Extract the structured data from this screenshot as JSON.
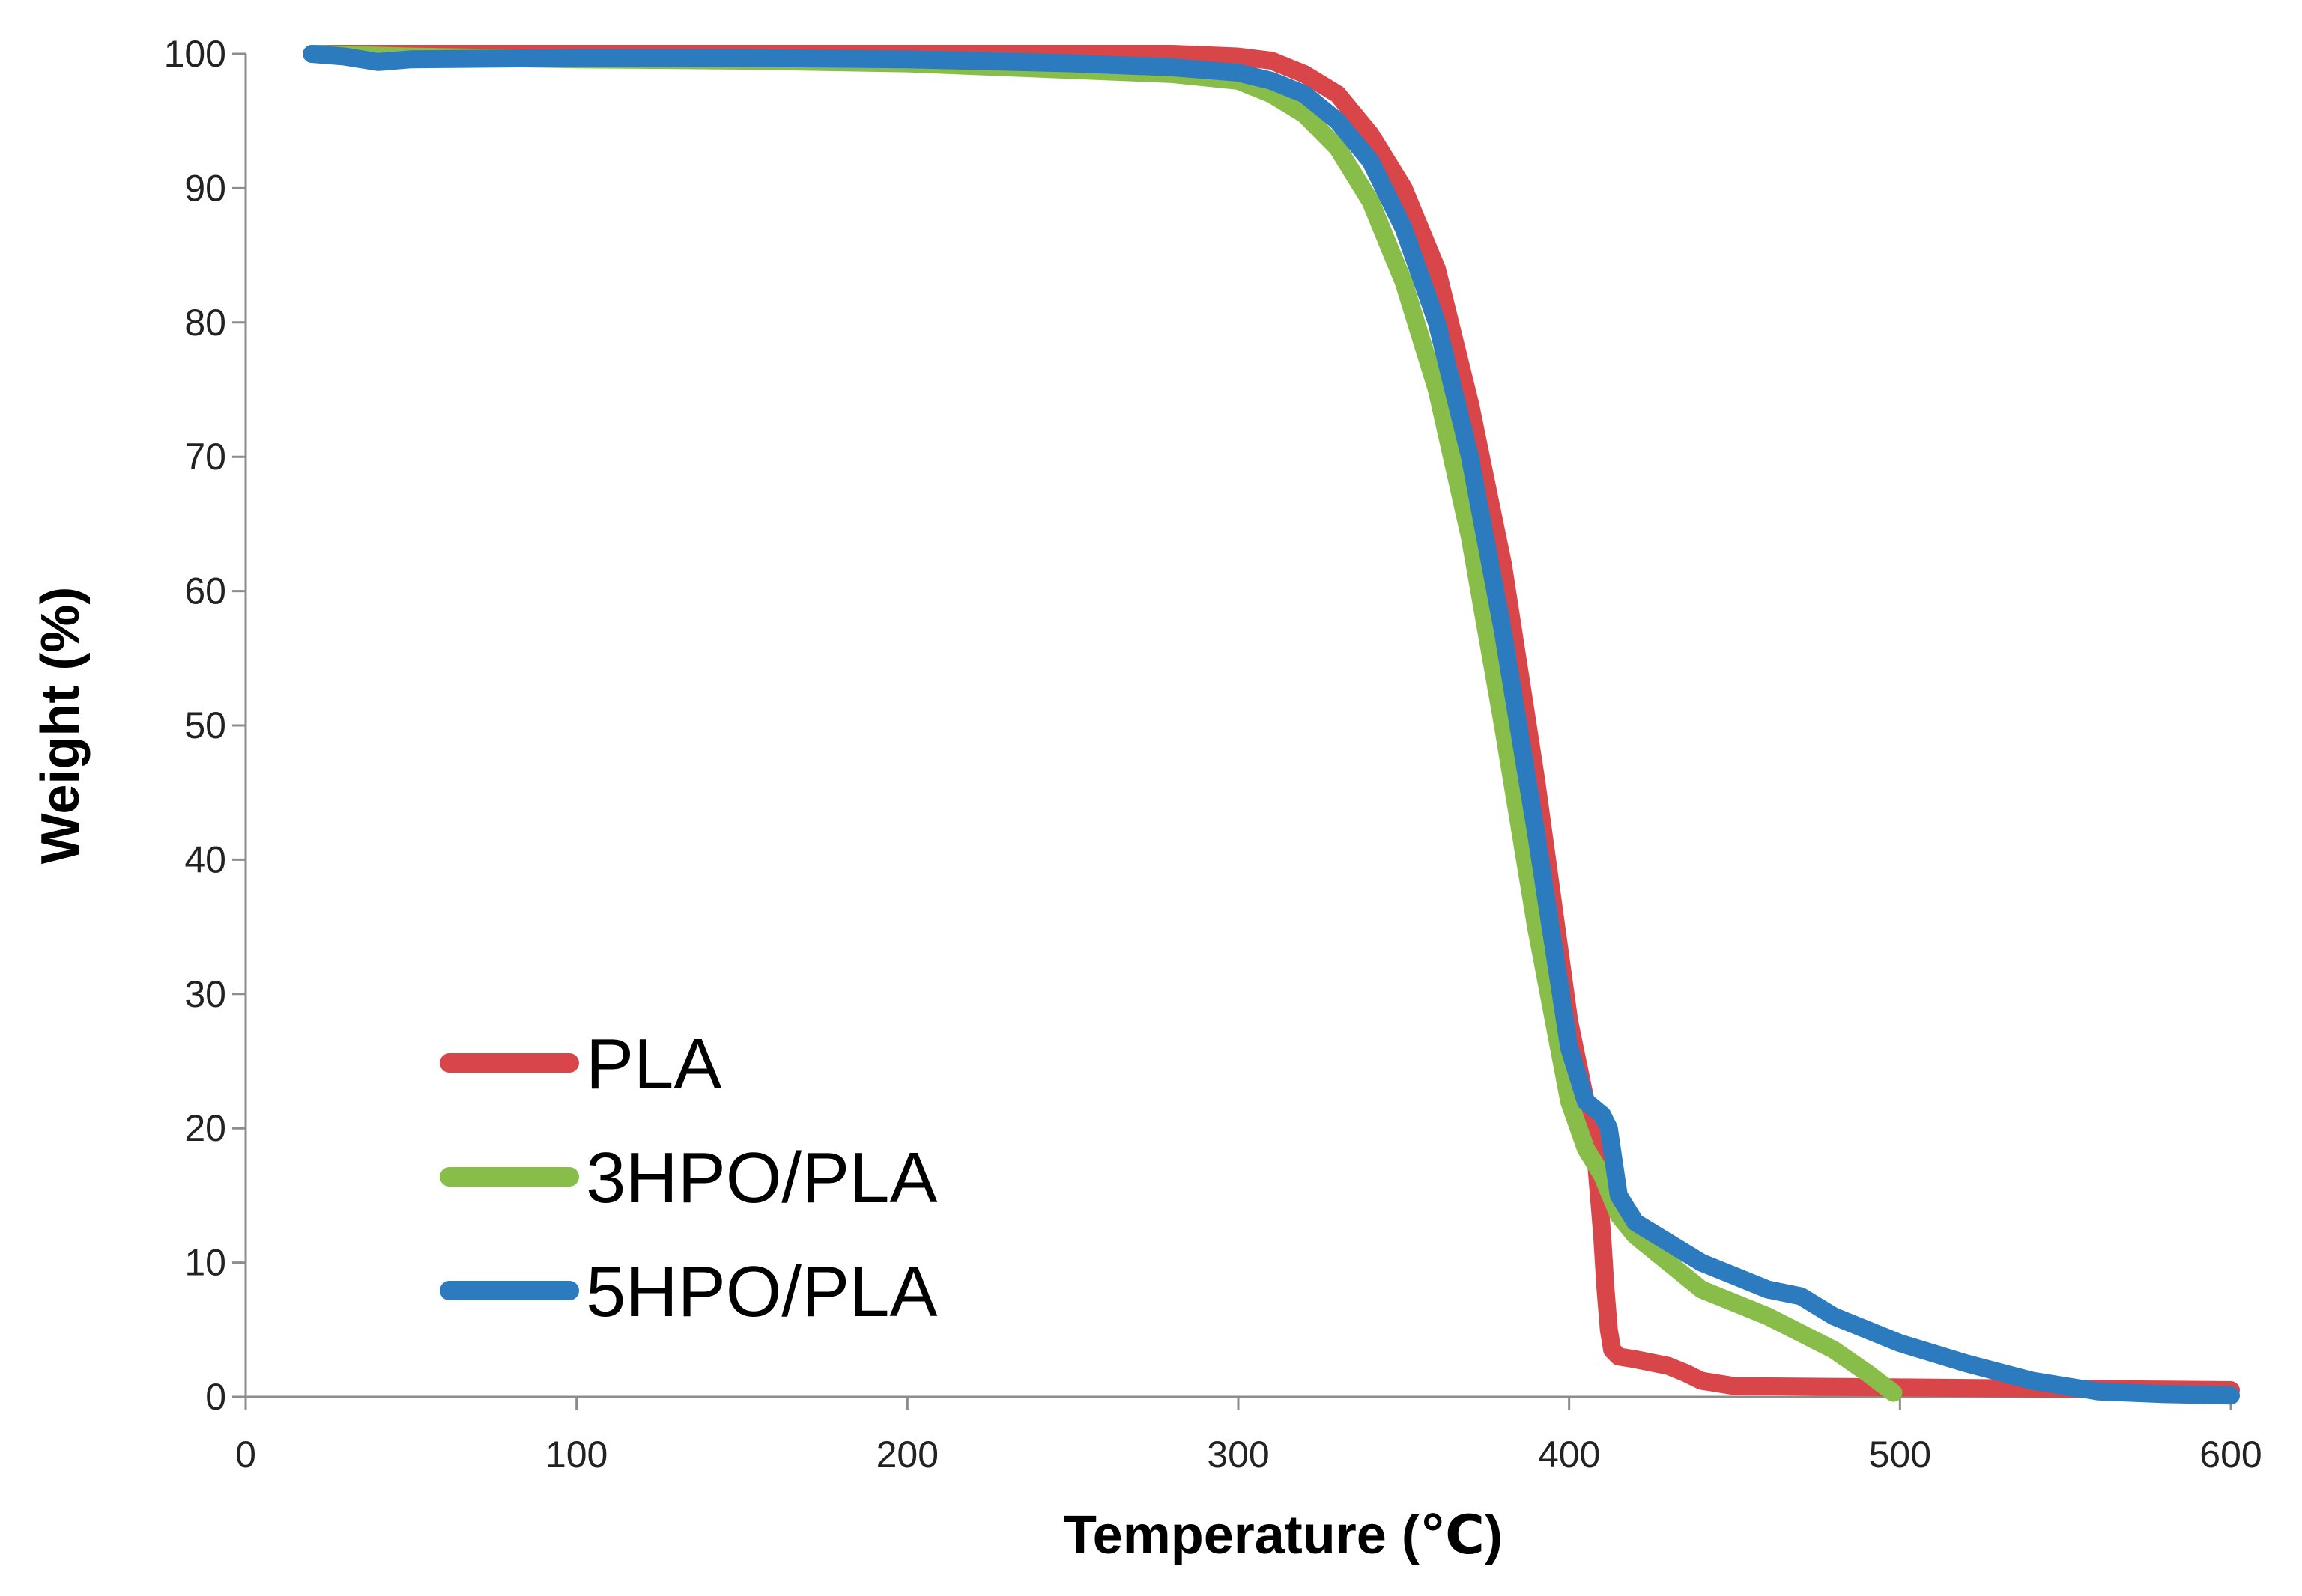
{
  "chart_data": {
    "type": "line",
    "title": "",
    "xlabel": "Temperature (℃)",
    "ylabel": "Weight (%)",
    "xlim": [
      0,
      600
    ],
    "ylim": [
      0,
      100
    ],
    "xticks": [
      0,
      100,
      200,
      300,
      400,
      500,
      600
    ],
    "yticks": [
      0,
      10,
      20,
      30,
      40,
      50,
      60,
      70,
      80,
      90,
      100
    ],
    "grid": false,
    "legend_position": "bottom-left",
    "series": [
      {
        "name": "PLA",
        "color": "#d9464a",
        "x": [
          20,
          50,
          100,
          200,
          280,
          300,
          310,
          320,
          330,
          340,
          350,
          360,
          370,
          380,
          390,
          400,
          405,
          408,
          410,
          411,
          412,
          413,
          415,
          420,
          430,
          435,
          440,
          450,
          500,
          550,
          600
        ],
        "y": [
          100,
          100,
          100,
          100,
          100,
          99.8,
          99.5,
          98.5,
          97,
          94,
          90,
          84,
          74,
          62,
          46,
          28,
          22,
          18,
          12,
          8,
          5,
          3.5,
          3,
          2.8,
          2.3,
          1.8,
          1.2,
          0.8,
          0.7,
          0.6,
          0.5
        ]
      },
      {
        "name": "3HPO/PLA",
        "color": "#88bd4a",
        "x": [
          20,
          50,
          100,
          150,
          200,
          250,
          280,
          300,
          310,
          320,
          330,
          340,
          350,
          360,
          370,
          380,
          390,
          400,
          405,
          410,
          415,
          420,
          430,
          440,
          460,
          480,
          490,
          498
        ],
        "y": [
          100,
          99.8,
          99.6,
          99.5,
          99.3,
          98.8,
          98.5,
          98,
          97,
          95.5,
          93,
          89,
          83,
          75,
          64,
          50,
          35,
          22,
          18.5,
          16.5,
          13.5,
          12,
          10,
          8,
          6,
          3.5,
          1.8,
          0.3
        ]
      },
      {
        "name": "5HPO/PLA",
        "color": "#2c7bbf",
        "x": [
          20,
          30,
          40,
          50,
          100,
          150,
          200,
          250,
          280,
          300,
          310,
          320,
          330,
          340,
          350,
          360,
          370,
          380,
          390,
          400,
          405,
          410,
          412,
          415,
          420,
          430,
          440,
          450,
          460,
          470,
          480,
          500,
          520,
          540,
          560,
          580,
          600
        ],
        "y": [
          100,
          99.8,
          99.4,
          99.6,
          99.7,
          99.7,
          99.6,
          99.3,
          99,
          98.6,
          98,
          97,
          95,
          92,
          87,
          80,
          70,
          57,
          42,
          26,
          22,
          21,
          20,
          15,
          13,
          11.5,
          10,
          9,
          8,
          7.5,
          6,
          4,
          2.5,
          1.2,
          0.4,
          0.2,
          0.1
        ]
      }
    ]
  }
}
